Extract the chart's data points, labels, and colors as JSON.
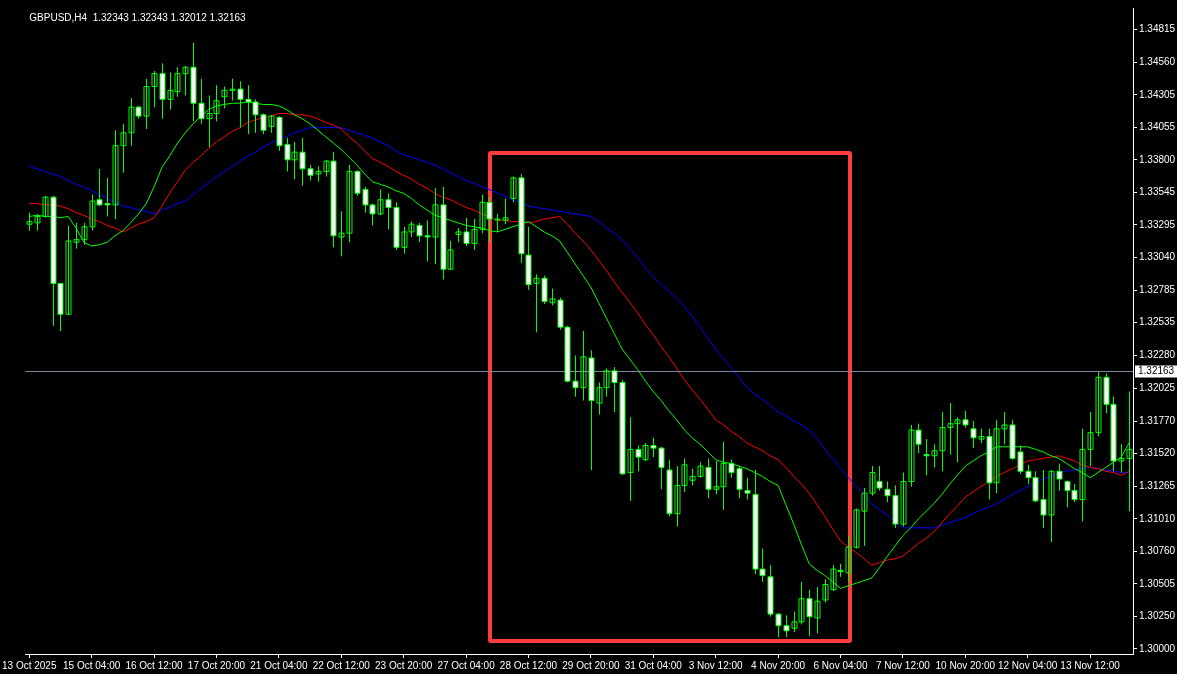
{
  "chart_data": {
    "type": "candlestick",
    "title": "GBPUSD,H4  1.32343 1.32343 1.32012 1.32163",
    "color": "#00ff00",
    "colors": [
      "#00ff00",
      "#00ff00",
      "#00ff00",
      "#ffffff",
      "#ffffff",
      "#00ff00",
      "#00ff00",
      "#00ff00",
      "#00ff00",
      "#ffffff",
      "#ffffff",
      "#00ff00",
      "#00ff00",
      "#00ff00",
      "#ffffff",
      "#00ff00",
      "#00ff00",
      "#ffffff",
      "#00ff00",
      "#00ff00",
      "#00ff00",
      "#ffffff",
      "#ffffff",
      "#00ff00",
      "#00ff00",
      "#00ff00",
      "#00ff00",
      "#ffffff",
      "#ffffff",
      "#ffffff",
      "#ffffff",
      "#00ff00",
      "#ffffff",
      "#ffffff",
      "#00ff00",
      "#ffffff",
      "#ffffff",
      "#00ff00",
      "#00ff00",
      "#ffffff",
      "#00ff00",
      "#00ff00",
      "#ffffff",
      "#ffffff",
      "#ffffff",
      "#00ff00",
      "#ffffff",
      "#ffffff",
      "#00ff00",
      "#00ff00",
      "#ffffff",
      "#ffffff",
      "#00ff00",
      "#ffffff",
      "#00ff00",
      "#00ff00",
      "#ffffff",
      "#00ff00",
      "#00ff00",
      "#ffffff",
      "#00ff00",
      "#00ff00",
      "#00ff00",
      "#ffffff",
      "#ffffff",
      "#00ff00",
      "#ffffff",
      "#00ff00",
      "#ffffff",
      "#ffffff",
      "#ffffff",
      "#00ff00",
      "#ffffff",
      "#00ff00",
      "#00ff00",
      "#ffffff",
      "#ffffff",
      "#00ff00",
      "#ffffff",
      "#00ff00",
      "#ffffff",
      "#ffffff",
      "#ffffff",
      "#00ff00",
      "#00ff00",
      "#00ff00",
      "#00ff00",
      "#ffffff",
      "#00ff00",
      "#00ff00",
      "#ffffff",
      "#ffffff",
      "#ffffff",
      "#ffffff",
      "#ffffff",
      "#ffffff",
      "#ffffff",
      "#ffffff",
      "#00ff00",
      "#00ff00",
      "#ffffff",
      "#00ff00",
      "#00ff00",
      "#00ff00",
      "#ffffff",
      "#00ff00",
      "#00ff00",
      "#00ff00",
      "#00ff00",
      "#ffffff",
      "#ffffff",
      "#ffffff",
      "#00ff00",
      "#00ff00",
      "#ffffff",
      "#ffffff",
      "#00ff00",
      "#00ff00",
      "#00ff00",
      "#00ff00",
      "#ffffff",
      "#ffffff",
      "#00ff00",
      "#ffffff",
      "#00ff00",
      "#00ff00",
      "#ffffff",
      "#ffffff",
      "#ffffff",
      "#ffffff",
      "#ffffff",
      "#00ff00",
      "#ffffff",
      "#ffffff",
      "#ffffff",
      "#00ff00",
      "#00ff00",
      "#00ff00",
      "#ffffff",
      "#ffffff",
      "#00ff00",
      "#00ff00"
    ],
    "categories": [
      "13 Oct 2025",
      null,
      null,
      null,
      null,
      null,
      null,
      null,
      "15 Oct 04:00",
      null,
      null,
      null,
      null,
      null,
      null,
      null,
      "16 Oct 12:00",
      null,
      null,
      null,
      null,
      null,
      null,
      null,
      "17 Oct 20:00",
      null,
      null,
      null,
      null,
      null,
      null,
      null,
      "21 Oct 04:00",
      null,
      null,
      null,
      null,
      null,
      null,
      null,
      "22 Oct 12:00",
      null,
      null,
      null,
      null,
      null,
      null,
      null,
      "23 Oct 20:00",
      null,
      null,
      null,
      null,
      null,
      null,
      null,
      "27 Oct 04:00",
      null,
      null,
      null,
      null,
      null,
      null,
      null,
      "28 Oct 12:00",
      null,
      null,
      null,
      null,
      null,
      null,
      null,
      "29 Oct 20:00",
      null,
      null,
      null,
      null,
      null,
      null,
      null,
      "31 Oct 04:00",
      null,
      null,
      null,
      null,
      null,
      null,
      null,
      "3 Nov 12:00",
      null,
      null,
      null,
      null,
      null,
      null,
      null,
      "4 Nov 20:00",
      null,
      null,
      null,
      null,
      null,
      null,
      null,
      "6 Nov 04:00",
      null,
      null,
      null,
      null,
      null,
      null,
      null,
      "7 Nov 12:00",
      null,
      null,
      null,
      null,
      null,
      null,
      null,
      "10 Nov 20:00",
      null,
      null,
      null,
      null,
      null,
      null,
      null,
      "12 Nov 04:00",
      null,
      null,
      null,
      null,
      null,
      null,
      null,
      "13 Nov 12:00",
      null,
      null,
      null,
      null,
      null
    ],
    "ohlc": [
      [
        1.333,
        1.3339,
        1.3325,
        1.3332
      ],
      [
        1.3331,
        1.3338,
        1.3325,
        1.3336
      ],
      [
        1.3336,
        1.3352,
        1.3335,
        1.3351
      ],
      [
        1.3351,
        1.3352,
        1.3251,
        1.3284
      ],
      [
        1.3284,
        1.3284,
        1.3247,
        1.326
      ],
      [
        1.326,
        1.3329,
        1.326,
        1.3317
      ],
      [
        1.3316,
        1.3331,
        1.3311,
        1.3318
      ],
      [
        1.3318,
        1.3331,
        1.3314,
        1.3328
      ],
      [
        1.3328,
        1.3353,
        1.3325,
        1.3348
      ],
      [
        1.3349,
        1.3373,
        1.3344,
        1.3345
      ],
      [
        1.3346,
        1.3366,
        1.3336,
        1.3345
      ],
      [
        1.3345,
        1.3403,
        1.3334,
        1.3391
      ],
      [
        1.3391,
        1.3408,
        1.337,
        1.3401
      ],
      [
        1.3401,
        1.3428,
        1.3391,
        1.3421
      ],
      [
        1.3421,
        1.3422,
        1.3412,
        1.3414
      ],
      [
        1.3414,
        1.3443,
        1.3404,
        1.3437
      ],
      [
        1.3437,
        1.3449,
        1.3421,
        1.3447
      ],
      [
        1.3447,
        1.3455,
        1.3412,
        1.3427
      ],
      [
        1.3427,
        1.3448,
        1.3419,
        1.3434
      ],
      [
        1.3433,
        1.3452,
        1.3429,
        1.3447
      ],
      [
        1.3447,
        1.3453,
        1.343,
        1.3452
      ],
      [
        1.3452,
        1.3471,
        1.341,
        1.3424
      ],
      [
        1.3424,
        1.3443,
        1.3408,
        1.3412
      ],
      [
        1.3412,
        1.343,
        1.339,
        1.3416
      ],
      [
        1.3416,
        1.3438,
        1.341,
        1.3426
      ],
      [
        1.3429,
        1.3437,
        1.342,
        1.3434
      ],
      [
        1.3434,
        1.3443,
        1.3426,
        1.3435
      ],
      [
        1.3435,
        1.3441,
        1.3405,
        1.3427
      ],
      [
        1.3427,
        1.3438,
        1.34,
        1.3425
      ],
      [
        1.3425,
        1.3427,
        1.3401,
        1.3415
      ],
      [
        1.3415,
        1.3416,
        1.34,
        1.3403
      ],
      [
        1.3406,
        1.3415,
        1.3401,
        1.3414
      ],
      [
        1.3413,
        1.3414,
        1.3387,
        1.3391
      ],
      [
        1.3392,
        1.3397,
        1.3371,
        1.338
      ],
      [
        1.338,
        1.3394,
        1.3365,
        1.3386
      ],
      [
        1.3386,
        1.3397,
        1.336,
        1.3373
      ],
      [
        1.3373,
        1.3376,
        1.3364,
        1.3368
      ],
      [
        1.3369,
        1.3375,
        1.3363,
        1.3371
      ],
      [
        1.3371,
        1.338,
        1.3367,
        1.3379
      ],
      [
        1.3379,
        1.3386,
        1.3312,
        1.3321
      ],
      [
        1.332,
        1.334,
        1.3305,
        1.3323
      ],
      [
        1.3323,
        1.3376,
        1.3316,
        1.3371
      ],
      [
        1.3371,
        1.3372,
        1.3352,
        1.3354
      ],
      [
        1.3357,
        1.3359,
        1.3339,
        1.3345
      ],
      [
        1.3345,
        1.3346,
        1.3329,
        1.3338
      ],
      [
        1.3338,
        1.3357,
        1.3337,
        1.3349
      ],
      [
        1.3349,
        1.3354,
        1.3326,
        1.3343
      ],
      [
        1.3343,
        1.3347,
        1.331,
        1.3312
      ],
      [
        1.3312,
        1.3328,
        1.3307,
        1.3324
      ],
      [
        1.3324,
        1.3332,
        1.332,
        1.333
      ],
      [
        1.3329,
        1.3331,
        1.3316,
        1.3321
      ],
      [
        1.3321,
        1.3333,
        1.3301,
        1.332
      ],
      [
        1.332,
        1.3358,
        1.3299,
        1.3345
      ],
      [
        1.3345,
        1.3359,
        1.3287,
        1.3295
      ],
      [
        1.3295,
        1.3317,
        1.3295,
        1.331
      ],
      [
        1.3322,
        1.3327,
        1.3316,
        1.3324
      ],
      [
        1.3324,
        1.3335,
        1.3313,
        1.3315
      ],
      [
        1.3315,
        1.3334,
        1.331,
        1.3326
      ],
      [
        1.3326,
        1.3353,
        1.3323,
        1.3347
      ],
      [
        1.3347,
        1.3351,
        1.3316,
        1.3334
      ],
      [
        1.3334,
        1.3338,
        1.3324,
        1.3334
      ],
      [
        1.3333,
        1.335,
        1.333,
        1.3335
      ],
      [
        1.335,
        1.3367,
        1.3347,
        1.3366
      ],
      [
        1.3366,
        1.3369,
        1.33,
        1.3307
      ],
      [
        1.3306,
        1.3328,
        1.3279,
        1.3283
      ],
      [
        1.3284,
        1.3291,
        1.3246,
        1.3288
      ],
      [
        1.3288,
        1.329,
        1.3268,
        1.327
      ],
      [
        1.3269,
        1.328,
        1.3267,
        1.3272
      ],
      [
        1.3271,
        1.3273,
        1.3248,
        1.325
      ],
      [
        1.325,
        1.3251,
        1.3207,
        1.3208
      ],
      [
        1.3208,
        1.3228,
        1.3196,
        1.3203
      ],
      [
        1.3203,
        1.3247,
        1.3193,
        1.3227
      ],
      [
        1.3226,
        1.3232,
        1.3139,
        1.3193
      ],
      [
        1.3191,
        1.3207,
        1.3182,
        1.3203
      ],
      [
        1.3203,
        1.3218,
        1.3196,
        1.3216
      ],
      [
        1.3216,
        1.3219,
        1.3184,
        1.3207
      ],
      [
        1.3207,
        1.3209,
        1.3135,
        1.3136
      ],
      [
        1.3137,
        1.318,
        1.3115,
        1.3155
      ],
      [
        1.3155,
        1.3158,
        1.3138,
        1.3149
      ],
      [
        1.3147,
        1.316,
        1.3146,
        1.3158
      ],
      [
        1.3158,
        1.3164,
        1.3149,
        1.3156
      ],
      [
        1.3156,
        1.3157,
        1.3124,
        1.3141
      ],
      [
        1.3139,
        1.3147,
        1.3103,
        1.3105
      ],
      [
        1.3105,
        1.3142,
        1.3095,
        1.3127
      ],
      [
        1.3127,
        1.3148,
        1.3122,
        1.3143
      ],
      [
        1.3131,
        1.314,
        1.3127,
        1.3134
      ],
      [
        1.3134,
        1.3145,
        1.3133,
        1.3142
      ],
      [
        1.3141,
        1.3148,
        1.3117,
        1.3124
      ],
      [
        1.3124,
        1.3146,
        1.312,
        1.3126
      ],
      [
        1.3126,
        1.3161,
        1.3108,
        1.3144
      ],
      [
        1.3144,
        1.3147,
        1.3133,
        1.3137
      ],
      [
        1.314,
        1.3142,
        1.3117,
        1.3124
      ],
      [
        1.3123,
        1.3133,
        1.3116,
        1.3121
      ],
      [
        1.312,
        1.3139,
        1.3058,
        1.3062
      ],
      [
        1.3062,
        1.3078,
        1.3052,
        1.3057
      ],
      [
        1.3056,
        1.3065,
        1.3025,
        1.3027
      ],
      [
        1.3027,
        1.3028,
        1.3009,
        1.3018
      ],
      [
        1.3018,
        1.3026,
        1.3009,
        1.3014
      ],
      [
        1.3016,
        1.3029,
        1.3013,
        1.3021
      ],
      [
        1.3021,
        1.3052,
        1.3019,
        1.3039
      ],
      [
        1.3039,
        1.3046,
        1.301,
        1.3025
      ],
      [
        1.3024,
        1.3048,
        1.3012,
        1.3037
      ],
      [
        1.3038,
        1.3054,
        1.3036,
        1.305
      ],
      [
        1.3046,
        1.3065,
        1.3045,
        1.3062
      ],
      [
        1.3061,
        1.3066,
        1.3056,
        1.306
      ],
      [
        1.3059,
        1.3088,
        1.3052,
        1.3079
      ],
      [
        1.3079,
        1.3109,
        1.3078,
        1.3108
      ],
      [
        1.3107,
        1.3125,
        1.308,
        1.3121
      ],
      [
        1.3121,
        1.3142,
        1.3119,
        1.3137
      ],
      [
        1.313,
        1.3142,
        1.3123,
        1.3125
      ],
      [
        1.3124,
        1.313,
        1.3114,
        1.3119
      ],
      [
        1.3119,
        1.3127,
        1.3094,
        1.3097
      ],
      [
        1.3097,
        1.3137,
        1.3095,
        1.313
      ],
      [
        1.313,
        1.3174,
        1.3126,
        1.317
      ],
      [
        1.317,
        1.3175,
        1.3152,
        1.3159
      ],
      [
        1.3151,
        1.3163,
        1.3135,
        1.315
      ],
      [
        1.315,
        1.3159,
        1.3141,
        1.3154
      ],
      [
        1.3154,
        1.3184,
        1.3138,
        1.3172
      ],
      [
        1.3172,
        1.3191,
        1.3151,
        1.3175
      ],
      [
        1.3175,
        1.318,
        1.3145,
        1.3178
      ],
      [
        1.3178,
        1.3185,
        1.3172,
        1.3174
      ],
      [
        1.3171,
        1.3177,
        1.3156,
        1.3164
      ],
      [
        1.3163,
        1.3171,
        1.316,
        1.3165
      ],
      [
        1.3165,
        1.3171,
        1.3116,
        1.3129
      ],
      [
        1.3129,
        1.3178,
        1.3121,
        1.3171
      ],
      [
        1.3171,
        1.3184,
        1.3159,
        1.3174
      ],
      [
        1.3174,
        1.3178,
        1.3147,
        1.3148
      ],
      [
        1.3153,
        1.3158,
        1.3136,
        1.3138
      ],
      [
        1.3138,
        1.3143,
        1.3128,
        1.3133
      ],
      [
        1.3133,
        1.3138,
        1.3114,
        1.3115
      ],
      [
        1.3116,
        1.3139,
        1.3094,
        1.3104
      ],
      [
        1.3104,
        1.3139,
        1.3083,
        1.3138
      ],
      [
        1.3138,
        1.3144,
        1.3123,
        1.3132
      ],
      [
        1.313,
        1.3131,
        1.311,
        1.3123
      ],
      [
        1.3123,
        1.3128,
        1.3114,
        1.3116
      ],
      [
        1.3116,
        1.3171,
        1.3099,
        1.3155
      ],
      [
        1.3155,
        1.3184,
        1.3142,
        1.3168
      ],
      [
        1.3168,
        1.3215,
        1.3165,
        1.3211
      ],
      [
        1.3211,
        1.3214,
        1.3183,
        1.319
      ],
      [
        1.319,
        1.3196,
        1.3138,
        1.3146
      ],
      [
        1.3146,
        1.3159,
        1.3137,
        1.3148
      ],
      [
        1.3148,
        1.32,
        1.3107,
        1.3155
      ]
    ],
    "series": [
      {
        "type": "line",
        "color": "#00ff00",
        "values": [
          1.3336,
          1.3337,
          1.3336,
          1.3336,
          1.3335,
          1.3336,
          1.3327,
          1.3316,
          1.3313,
          1.3314,
          1.3316,
          1.3321,
          1.3325,
          1.3331,
          1.3338,
          1.3346,
          1.3359,
          1.3374,
          1.3383,
          1.3393,
          1.3401,
          1.3408,
          1.3414,
          1.3419,
          1.3422,
          1.3423,
          1.3424,
          1.3424,
          1.3425,
          1.3424,
          1.3423,
          1.3423,
          1.3422,
          1.3419,
          1.3415,
          1.3412,
          1.3408,
          1.3403,
          1.3398,
          1.3393,
          1.3388,
          1.3382,
          1.3376,
          1.3369,
          1.3363,
          1.3361,
          1.3359,
          1.3356,
          1.3354,
          1.335,
          1.3345,
          1.3341,
          1.3337,
          1.3335,
          1.3333,
          1.3331,
          1.3329,
          1.3328,
          1.3327,
          1.3325,
          1.3324,
          1.3326,
          1.3328,
          1.333,
          1.3332,
          1.3328,
          1.3324,
          1.3321,
          1.3317,
          1.3308,
          1.3299,
          1.329,
          1.3281,
          1.3269,
          1.3257,
          1.3245,
          1.3233,
          1.3225,
          1.3217,
          1.3208,
          1.32,
          1.3193,
          1.3185,
          1.3178,
          1.317,
          1.3164,
          1.3159,
          1.3153,
          1.3147,
          1.3145,
          1.3144,
          1.3142,
          1.314,
          1.3137,
          1.3134,
          1.313,
          1.3127,
          1.3112,
          1.3097,
          1.3081,
          1.3066,
          1.3061,
          1.3057,
          1.3052,
          1.3047,
          1.3049,
          1.3051,
          1.3053,
          1.3055,
          1.3063,
          1.3072,
          1.308,
          1.3088,
          1.3094,
          1.3101,
          1.3107,
          1.3113,
          1.312,
          1.3128,
          1.3135,
          1.3142,
          1.3146,
          1.315,
          1.3153,
          1.3157,
          1.3157,
          1.3157,
          1.3157,
          1.3157,
          1.3155,
          1.3153,
          1.315,
          1.3148,
          1.3144,
          1.314,
          1.3137,
          1.3133,
          1.3137,
          1.3141,
          1.3145,
          1.3149,
          1.316
        ]
      },
      {
        "type": "line",
        "color": "#ff0000",
        "values": [
          1.3346,
          1.3346,
          1.3345,
          1.3345,
          1.3344,
          1.3342,
          1.3339,
          1.3337,
          1.3334,
          1.3332,
          1.3329,
          1.3327,
          1.3324,
          1.3327,
          1.333,
          1.3332,
          1.3335,
          1.3344,
          1.3354,
          1.3363,
          1.3372,
          1.3378,
          1.3383,
          1.3389,
          1.3394,
          1.3398,
          1.3402,
          1.3405,
          1.3409,
          1.3411,
          1.3413,
          1.3414,
          1.3416,
          1.3416,
          1.3415,
          1.3415,
          1.3414,
          1.3412,
          1.3409,
          1.3407,
          1.3404,
          1.3398,
          1.3393,
          1.3387,
          1.3381,
          1.3378,
          1.3375,
          1.3371,
          1.3368,
          1.3365,
          1.3361,
          1.3358,
          1.3354,
          1.3351,
          1.3349,
          1.3346,
          1.3343,
          1.3341,
          1.3338,
          1.3336,
          1.3333,
          1.3333,
          1.3332,
          1.3332,
          1.3331,
          1.3332,
          1.3334,
          1.3335,
          1.3336,
          1.333,
          1.3323,
          1.3317,
          1.331,
          1.3302,
          1.3294,
          1.3285,
          1.3277,
          1.3269,
          1.3261,
          1.3252,
          1.3244,
          1.3235,
          1.3227,
          1.3218,
          1.3209,
          1.3201,
          1.3194,
          1.3186,
          1.3178,
          1.3174,
          1.3169,
          1.3165,
          1.316,
          1.3157,
          1.3154,
          1.315,
          1.3147,
          1.3141,
          1.3134,
          1.3128,
          1.3121,
          1.3112,
          1.3103,
          1.3093,
          1.3084,
          1.3079,
          1.3075,
          1.307,
          1.3065,
          1.3067,
          1.3069,
          1.307,
          1.3072,
          1.3077,
          1.3082,
          1.3086,
          1.3091,
          1.3098,
          1.3105,
          1.3111,
          1.3118,
          1.3122,
          1.3126,
          1.313,
          1.3134,
          1.3137,
          1.314,
          1.3143,
          1.3146,
          1.3147,
          1.3148,
          1.3149,
          1.315,
          1.3148,
          1.3146,
          1.3143,
          1.3141,
          1.314,
          1.3138,
          1.3137,
          1.3135,
          1.3138
        ]
      },
      {
        "type": "line",
        "color": "#0000ff",
        "values": [
          1.3375,
          1.3373,
          1.3371,
          1.3369,
          1.3367,
          1.3364,
          1.3361,
          1.3359,
          1.3356,
          1.3353,
          1.335,
          1.3347,
          1.3344,
          1.3343,
          1.3341,
          1.334,
          1.3338,
          1.3341,
          1.3343,
          1.3346,
          1.3348,
          1.3353,
          1.3358,
          1.3362,
          1.3367,
          1.3371,
          1.3375,
          1.3379,
          1.3383,
          1.3386,
          1.339,
          1.3393,
          1.3396,
          1.3398,
          1.3401,
          1.3403,
          1.3405,
          1.3405,
          1.3405,
          1.3405,
          1.3405,
          1.3403,
          1.3401,
          1.3399,
          1.3397,
          1.3394,
          1.3391,
          1.3387,
          1.3384,
          1.3382,
          1.338,
          1.3378,
          1.3376,
          1.3373,
          1.337,
          1.3367,
          1.3364,
          1.3362,
          1.3359,
          1.3357,
          1.3354,
          1.3352,
          1.3349,
          1.3347,
          1.3344,
          1.3343,
          1.3342,
          1.3341,
          1.334,
          1.3339,
          1.3338,
          1.3337,
          1.3336,
          1.3332,
          1.3327,
          1.3323,
          1.3318,
          1.3311,
          1.3304,
          1.3296,
          1.3289,
          1.3283,
          1.3278,
          1.3272,
          1.3266,
          1.3258,
          1.325,
          1.3241,
          1.3233,
          1.3226,
          1.3218,
          1.3211,
          1.3203,
          1.3198,
          1.3194,
          1.3189,
          1.3184,
          1.3181,
          1.3177,
          1.3174,
          1.317,
          1.3163,
          1.3155,
          1.3148,
          1.314,
          1.3133,
          1.3127,
          1.312,
          1.3113,
          1.3108,
          1.3104,
          1.3099,
          1.3094,
          1.3094,
          1.3094,
          1.3094,
          1.3094,
          1.3096,
          1.3098,
          1.31,
          1.3102,
          1.3105,
          1.3108,
          1.311,
          1.3113,
          1.3116,
          1.312,
          1.3123,
          1.3126,
          1.3129,
          1.3132,
          1.3134,
          1.3137,
          1.3138,
          1.3139,
          1.314,
          1.3141,
          1.314,
          1.3139,
          1.3138,
          1.3137,
          1.3137
        ]
      }
    ],
    "ylim": [
      1.2996,
      1.3498
    ],
    "yticks": [
      {
        "value": 1.3,
        "label": "1.30000"
      },
      {
        "value": 1.3025,
        "label": "1.30250"
      },
      {
        "value": 1.30505,
        "label": "1.30505"
      },
      {
        "value": 1.3076,
        "label": "1.30760"
      },
      {
        "value": 1.3101,
        "label": "1.31010"
      },
      {
        "value": 1.31265,
        "label": "1.31265"
      },
      {
        "value": 1.3152,
        "label": "1.31520"
      },
      {
        "value": 1.3177,
        "label": "1.31770"
      },
      {
        "value": 1.32025,
        "label": "1.32025"
      },
      {
        "value": 1.3228,
        "label": "1.32280"
      },
      {
        "value": 1.32535,
        "label": "1.32535"
      },
      {
        "value": 1.32785,
        "label": "1.32785"
      },
      {
        "value": 1.3304,
        "label": "1.33040"
      },
      {
        "value": 1.33295,
        "label": "1.33295"
      },
      {
        "value": 1.33545,
        "label": "1.33545"
      },
      {
        "value": 1.338,
        "label": "1.33800"
      },
      {
        "value": 1.34055,
        "label": "1.34055"
      },
      {
        "value": 1.34305,
        "label": "1.34305"
      },
      {
        "value": 1.3456,
        "label": "1.34560"
      },
      {
        "value": 1.34815,
        "label": "1.34815"
      }
    ],
    "ref_lines": [
      {
        "axis": "y",
        "value": 1.32163,
        "label": "1.32163",
        "color": "#778899"
      }
    ]
  }
}
